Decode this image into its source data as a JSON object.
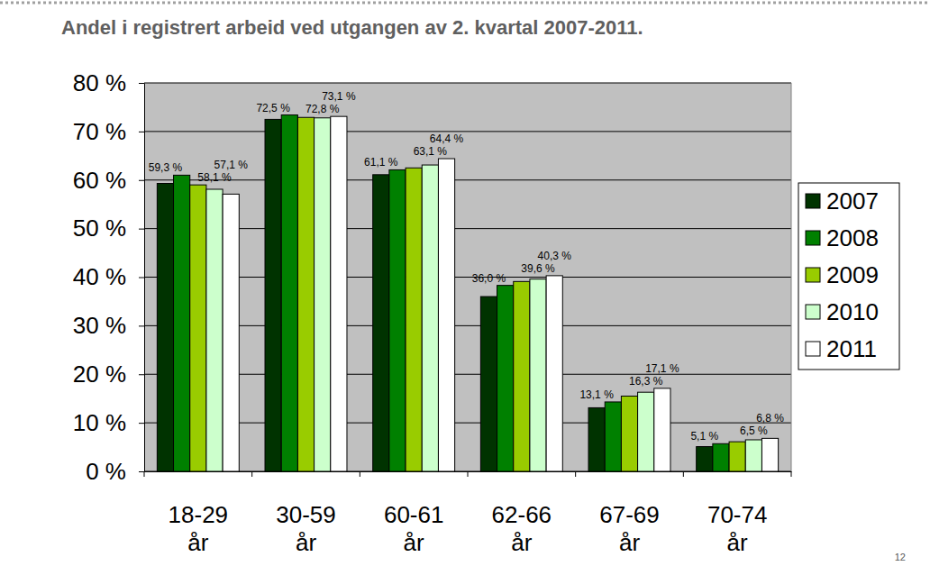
{
  "chart_data": {
    "type": "bar",
    "title": "Andel i registrert arbeid ved utgangen av 2. kvartal 2007-2011.",
    "categories": [
      "18-29 år",
      "30-59 år",
      "60-61 år",
      "62-66 år",
      "67-69 år",
      "70-74 år"
    ],
    "series": [
      {
        "name": "2007",
        "color": "#003300",
        "values": [
          59.3,
          72.5,
          61.1,
          36.0,
          13.1,
          5.1
        ],
        "value_labels": [
          "59,3 %",
          "72,5 %",
          "61,1 %",
          "36,0 %",
          "13,1 %",
          "5,1 %"
        ]
      },
      {
        "name": "2008",
        "color": "#008000",
        "values": [
          61.0,
          73.4,
          62.1,
          38.3,
          14.3,
          5.7
        ]
      },
      {
        "name": "2009",
        "color": "#99cc00",
        "values": [
          59.0,
          72.9,
          62.5,
          39.1,
          15.5,
          6.1
        ]
      },
      {
        "name": "2010",
        "color": "#ccffcc",
        "values": [
          58.1,
          72.8,
          63.1,
          39.6,
          16.3,
          6.5
        ],
        "value_labels": [
          "58,1 %",
          "72,8 %",
          "63,1 %",
          "39,6 %",
          "16,3 %",
          "6,5 %"
        ]
      },
      {
        "name": "2011",
        "color": "#ffffff",
        "values": [
          57.1,
          73.1,
          64.4,
          40.3,
          17.1,
          6.8
        ],
        "value_labels": [
          "57,1 %",
          "73,1 %",
          "64,4 %",
          "40,3 %",
          "17,1 %",
          "6,8 %"
        ]
      }
    ],
    "ylim": [
      0,
      80
    ],
    "yticks": [
      {
        "value": 0,
        "label": "0 %"
      },
      {
        "value": 10,
        "label": "10 %"
      },
      {
        "value": 20,
        "label": "20 %"
      },
      {
        "value": 30,
        "label": "30 %"
      },
      {
        "value": 40,
        "label": "40 %"
      },
      {
        "value": 50,
        "label": "50 %"
      },
      {
        "value": 60,
        "label": "60 %"
      },
      {
        "value": 70,
        "label": "70 %"
      },
      {
        "value": 80,
        "label": "80 %"
      }
    ],
    "grid": true,
    "legend": "right",
    "data_labels": true,
    "annotations": [
      "12"
    ]
  }
}
